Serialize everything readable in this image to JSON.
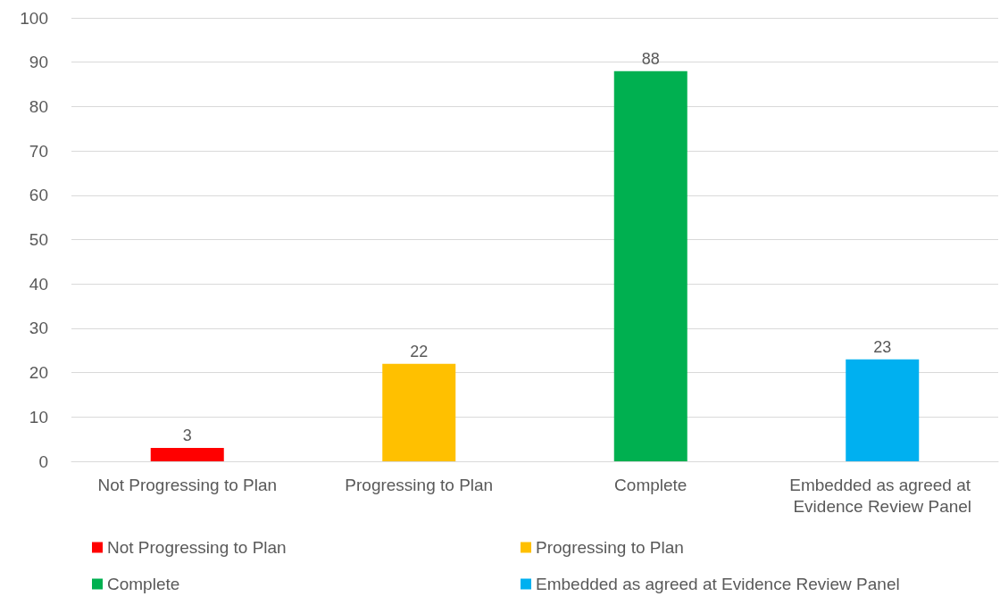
{
  "chart_data": {
    "type": "bar",
    "categories": [
      "Not Progressing to Plan",
      "Progressing to Plan",
      "Complete",
      "Embedded as agreed at Evidence Review Panel"
    ],
    "series": [
      {
        "name": "Not Progressing to Plan",
        "color": "#ff0000",
        "values": [
          3,
          null,
          null,
          null
        ]
      },
      {
        "name": "Progressing to Plan",
        "color": "#ffc000",
        "values": [
          null,
          22,
          null,
          null
        ]
      },
      {
        "name": "Complete",
        "color": "#00b050",
        "values": [
          null,
          null,
          88,
          null
        ]
      },
      {
        "name": "Embedded as agreed at Evidence Review Panel",
        "color": "#00b0f0",
        "values": [
          null,
          null,
          null,
          23
        ]
      }
    ],
    "ylim": [
      0,
      100
    ],
    "yticks": [
      0,
      10,
      20,
      30,
      40,
      50,
      60,
      70,
      80,
      90,
      100
    ],
    "grid": "y",
    "legend": "bottom",
    "data_labels": true
  }
}
